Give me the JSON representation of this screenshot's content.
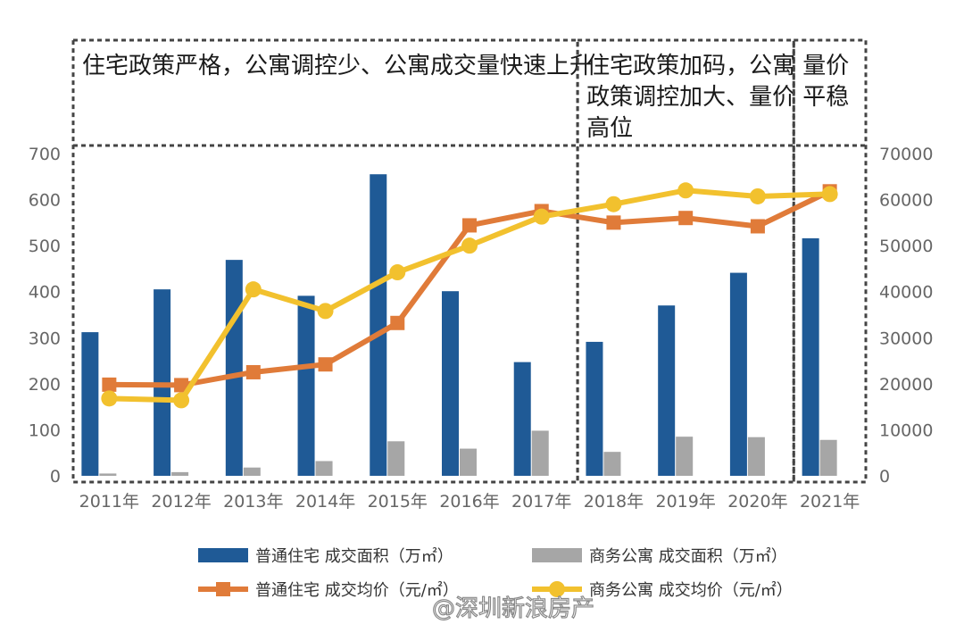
{
  "chart_data": {
    "type": "bar",
    "categories": [
      "2011年",
      "2012年",
      "2013年",
      "2014年",
      "2015年",
      "2016年",
      "2017年",
      "2018年",
      "2019年",
      "2020年",
      "2021年"
    ],
    "series": [
      {
        "name": "普通住宅 成交面积（万㎡）",
        "kind": "bar",
        "axis": "left",
        "color": "#1f5a96",
        "values": [
          312,
          405,
          469,
          391,
          655,
          401,
          247,
          291,
          370,
          441,
          516
        ]
      },
      {
        "name": "商务公寓 成交面积（万㎡）",
        "kind": "bar",
        "axis": "left",
        "color": "#a6a6a6",
        "values": [
          5,
          8,
          18,
          32,
          75,
          59,
          98,
          52,
          85,
          84,
          78
        ]
      },
      {
        "name": "普通住宅 成交均价（元/㎡）",
        "kind": "line",
        "axis": "right",
        "color": "#e07b39",
        "marker": "square",
        "values": [
          19800,
          19700,
          22500,
          24200,
          33200,
          54400,
          57500,
          55000,
          56000,
          54200,
          61800
        ]
      },
      {
        "name": "商务公寓 成交均价（元/㎡）",
        "kind": "line",
        "axis": "right",
        "color": "#f2c12e",
        "marker": "circle",
        "values": [
          16800,
          16400,
          40500,
          35800,
          44200,
          50000,
          56300,
          59000,
          62000,
          60700,
          61200
        ]
      }
    ],
    "y_left": {
      "min": 0,
      "max": 700,
      "ticks": [
        "0",
        "100",
        "200",
        "300",
        "400",
        "500",
        "600",
        "700"
      ]
    },
    "y_right": {
      "min": 0,
      "max": 70000,
      "ticks": [
        "0",
        "10000",
        "20000",
        "30000",
        "40000",
        "50000",
        "60000",
        "70000"
      ]
    },
    "grid": false,
    "legend_position": "bottom",
    "periods": [
      {
        "label_lines": [
          "住宅政策严格，公寓调控少、公寓成交量快速上升"
        ],
        "from": 0,
        "to": 6
      },
      {
        "label_lines": [
          "住宅政策加码，公寓",
          "政策调控加大、量价",
          "高位"
        ],
        "from": 7,
        "to": 9
      },
      {
        "label_lines": [
          "量价",
          "平稳"
        ],
        "from": 10,
        "to": 10
      }
    ]
  },
  "watermark": "@深圳新浪房产"
}
